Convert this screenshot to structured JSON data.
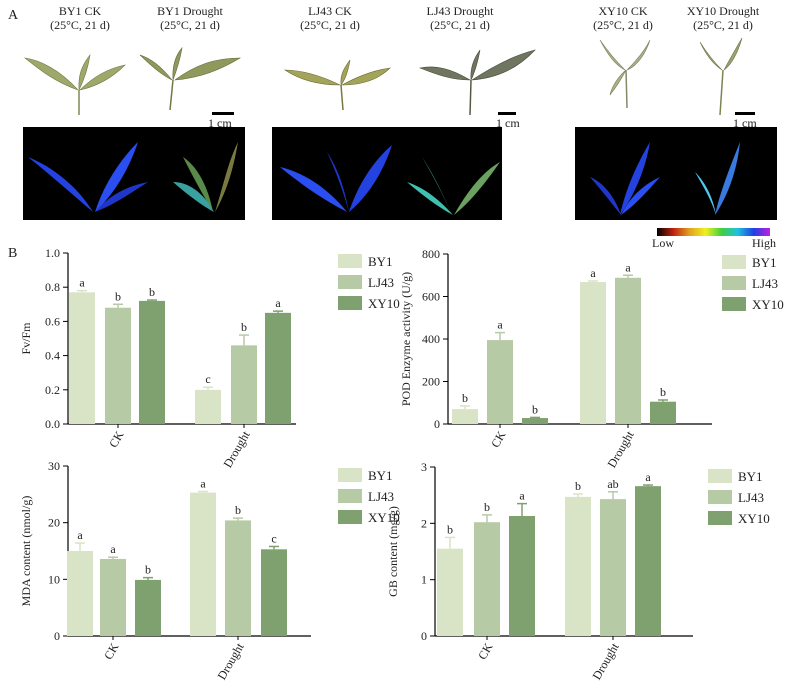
{
  "panel_a": {
    "letter": "A",
    "plants": [
      {
        "name": "BY1 CK",
        "condition": "(25°C, 21 d)"
      },
      {
        "name": "BY1 Drought",
        "condition": "(25°C, 21 d)"
      },
      {
        "name": "LJ43 CK",
        "condition": "(25°C, 21 d)"
      },
      {
        "name": "LJ43 Drought",
        "condition": "(25°C, 21 d)"
      },
      {
        "name": "XY10 CK",
        "condition": "(25°C, 21 d)"
      },
      {
        "name": "XY10 Drought",
        "condition": "(25°C, 21 d)"
      }
    ],
    "scale_label": "1 cm",
    "colorbar": {
      "low": "Low",
      "high": "High"
    }
  },
  "panel_b": {
    "letter": "B"
  },
  "colors": {
    "BY1": "#d9e3c6",
    "LJ43": "#b7caa6",
    "XY10": "#7fa06f"
  },
  "chart_data": [
    {
      "type": "bar",
      "categories": [
        "CK",
        "Drought"
      ],
      "ylabel": "Fv/Fm",
      "ylim": [
        0,
        1.0
      ],
      "yticks": [
        "0.0",
        "0.2",
        "0.4",
        "0.6",
        "0.8",
        "1.0"
      ],
      "series": [
        {
          "name": "BY1",
          "values": [
            0.77,
            0.2
          ],
          "errors": [
            0.01,
            0.015
          ],
          "letters": [
            "a",
            "c"
          ]
        },
        {
          "name": "LJ43",
          "values": [
            0.68,
            0.46
          ],
          "errors": [
            0.02,
            0.06
          ],
          "letters": [
            "b",
            "b"
          ]
        },
        {
          "name": "XY10",
          "values": [
            0.72,
            0.65
          ],
          "errors": [
            0.005,
            0.01
          ],
          "letters": [
            "b",
            "a"
          ]
        }
      ]
    },
    {
      "type": "bar",
      "categories": [
        "CK",
        "Drought"
      ],
      "ylabel": "POD Enzyme activity (U/g)",
      "ylim": [
        0,
        800
      ],
      "yticks": [
        "0",
        "200",
        "400",
        "600",
        "800"
      ],
      "series": [
        {
          "name": "BY1",
          "values": [
            70,
            668
          ],
          "errors": [
            15,
            5
          ],
          "letters": [
            "b",
            "a"
          ]
        },
        {
          "name": "LJ43",
          "values": [
            395,
            688
          ],
          "errors": [
            35,
            12
          ],
          "letters": [
            "a",
            "a"
          ]
        },
        {
          "name": "XY10",
          "values": [
            28,
            105
          ],
          "errors": [
            3,
            8
          ],
          "letters": [
            "b",
            "b"
          ]
        }
      ]
    },
    {
      "type": "bar",
      "categories": [
        "CK",
        "Drought"
      ],
      "ylabel": "MDA content (nmol/g)",
      "ylim": [
        0,
        30
      ],
      "yticks": [
        "0",
        "10",
        "20",
        "30"
      ],
      "series": [
        {
          "name": "BY1",
          "values": [
            15.0,
            25.3
          ],
          "errors": [
            1.4,
            0.2
          ],
          "letters": [
            "a",
            "a"
          ]
        },
        {
          "name": "LJ43",
          "values": [
            13.6,
            20.4
          ],
          "errors": [
            0.3,
            0.4
          ],
          "letters": [
            "a",
            "b"
          ]
        },
        {
          "name": "XY10",
          "values": [
            9.9,
            15.3
          ],
          "errors": [
            0.4,
            0.5
          ],
          "letters": [
            "b",
            "c"
          ]
        }
      ]
    },
    {
      "type": "bar",
      "categories": [
        "CK",
        "Drought"
      ],
      "ylabel": "GB content (mg/g)",
      "ylim": [
        0,
        3
      ],
      "yticks": [
        "0",
        "1",
        "2",
        "3"
      ],
      "series": [
        {
          "name": "BY1",
          "values": [
            1.55,
            2.47
          ],
          "errors": [
            0.2,
            0.05
          ],
          "letters": [
            "b",
            "b"
          ]
        },
        {
          "name": "LJ43",
          "values": [
            2.02,
            2.43
          ],
          "errors": [
            0.13,
            0.13
          ],
          "letters": [
            "b",
            "ab"
          ]
        },
        {
          "name": "XY10",
          "values": [
            2.13,
            2.66
          ],
          "errors": [
            0.22,
            0.02
          ],
          "letters": [
            "a",
            "a"
          ]
        }
      ]
    }
  ]
}
